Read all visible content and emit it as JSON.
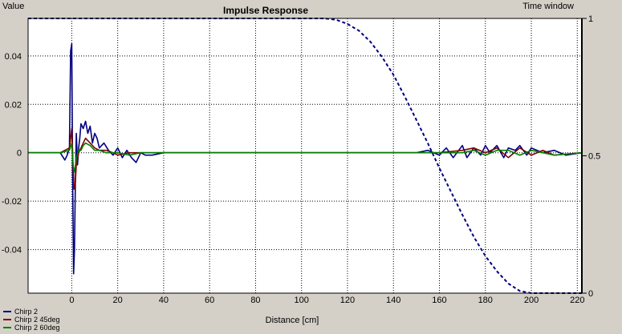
{
  "chart_data": {
    "type": "line",
    "title": "Impulse Response",
    "ylabel": "Value",
    "y2label": "Time window",
    "xlabel": "Distance [cm]",
    "xlim": [
      -19,
      222
    ],
    "ylim": [
      -0.058,
      0.0555
    ],
    "y2lim": [
      0,
      1
    ],
    "xticks": [
      0,
      20,
      40,
      60,
      80,
      100,
      120,
      140,
      160,
      180,
      200,
      220
    ],
    "yticks": [
      0.04,
      0.02,
      0,
      -0.02,
      -0.04
    ],
    "yticklabels": [
      "0.04",
      "0.02",
      "0",
      "-0.02",
      "-0.04"
    ],
    "y2ticks": [
      1,
      0.5,
      0
    ],
    "y2ticklabels": [
      "1",
      "0.5",
      "0"
    ],
    "grid": true,
    "legend_position": "bottom-left",
    "series": [
      {
        "name": "Chirp 2",
        "color": "#00007f",
        "x": [
          -19,
          -5,
          -3,
          -2,
          -1,
          -0.5,
          0,
          0.4,
          0.8,
          1.2,
          1.6,
          2,
          2.5,
          3,
          3.5,
          4,
          5,
          6,
          7,
          8,
          9,
          10,
          11,
          12,
          14,
          16,
          18,
          20,
          22,
          24,
          26,
          28,
          30,
          32,
          35,
          40,
          50,
          60,
          80,
          100,
          120,
          140,
          150,
          155,
          160,
          163,
          166,
          170,
          172,
          175,
          178,
          180,
          182,
          185,
          188,
          190,
          193,
          195,
          198,
          200,
          205,
          210,
          215,
          222
        ],
        "y": [
          0,
          0,
          -0.003,
          -0.001,
          0.002,
          0.042,
          0.045,
          -0.01,
          -0.05,
          -0.04,
          -0.01,
          0.008,
          -0.005,
          0.002,
          0.006,
          0.012,
          0.01,
          0.013,
          0.008,
          0.011,
          0.004,
          0.008,
          0.006,
          0.002,
          0.004,
          0.001,
          -0.001,
          0.002,
          -0.002,
          0.001,
          -0.002,
          -0.004,
          0,
          -0.001,
          -0.001,
          0,
          0,
          0,
          0,
          0,
          0,
          0,
          0,
          0.001,
          -0.001,
          0.002,
          -0.002,
          0.003,
          -0.002,
          0.002,
          -0.001,
          0.003,
          0,
          0.003,
          -0.002,
          0.002,
          0.001,
          0.003,
          -0.001,
          0.002,
          0,
          0.001,
          -0.001,
          0
        ]
      },
      {
        "name": "Chirp 2 45deg",
        "color": "#7f0000",
        "x": [
          -19,
          -5,
          -1,
          0,
          0.5,
          1,
          1.5,
          2,
          3,
          4,
          5,
          6,
          8,
          10,
          12,
          15,
          18,
          20,
          25,
          30,
          40,
          60,
          100,
          140,
          160,
          170,
          175,
          180,
          185,
          190,
          195,
          200,
          205,
          210,
          222
        ],
        "y": [
          0,
          0,
          0.002,
          0.01,
          -0.003,
          -0.015,
          -0.013,
          -0.005,
          0,
          0.002,
          0.004,
          0.006,
          0.004,
          0.002,
          0.001,
          0.001,
          0,
          -0.001,
          0,
          0,
          0,
          0,
          0,
          0,
          0,
          0.001,
          0.002,
          0,
          0.002,
          -0.002,
          0.002,
          -0.001,
          0.001,
          -0.001,
          0
        ]
      },
      {
        "name": "Chirp 2 60deg",
        "color": "#007f00",
        "x": [
          -19,
          -5,
          -1,
          0,
          0.5,
          1,
          1.5,
          2,
          3,
          4,
          5,
          6,
          8,
          10,
          12,
          15,
          20,
          25,
          30,
          40,
          60,
          100,
          140,
          160,
          170,
          175,
          180,
          185,
          190,
          195,
          200,
          205,
          210,
          222
        ],
        "y": [
          0,
          0,
          0.001,
          0.004,
          -0.004,
          -0.008,
          -0.006,
          -0.002,
          0.001,
          0.001,
          0.003,
          0.004,
          0.003,
          0.001,
          0.001,
          0,
          0,
          -0.001,
          0,
          0,
          0,
          0,
          0,
          0,
          0,
          0.001,
          -0.001,
          0.001,
          0.001,
          -0.001,
          0.001,
          0,
          -0.001,
          0
        ]
      },
      {
        "name": "Time window",
        "axis": "y2",
        "color": "#00007f",
        "dashed": true,
        "x": [
          -19,
          110,
          115,
          120,
          125,
          130,
          135,
          140,
          145,
          150,
          155,
          160,
          165,
          170,
          175,
          180,
          185,
          190,
          195,
          200,
          222
        ],
        "y": [
          1,
          1,
          0.995,
          0.98,
          0.955,
          0.915,
          0.86,
          0.795,
          0.715,
          0.63,
          0.545,
          0.455,
          0.37,
          0.285,
          0.205,
          0.135,
          0.08,
          0.035,
          0.008,
          0,
          0
        ]
      }
    ]
  }
}
